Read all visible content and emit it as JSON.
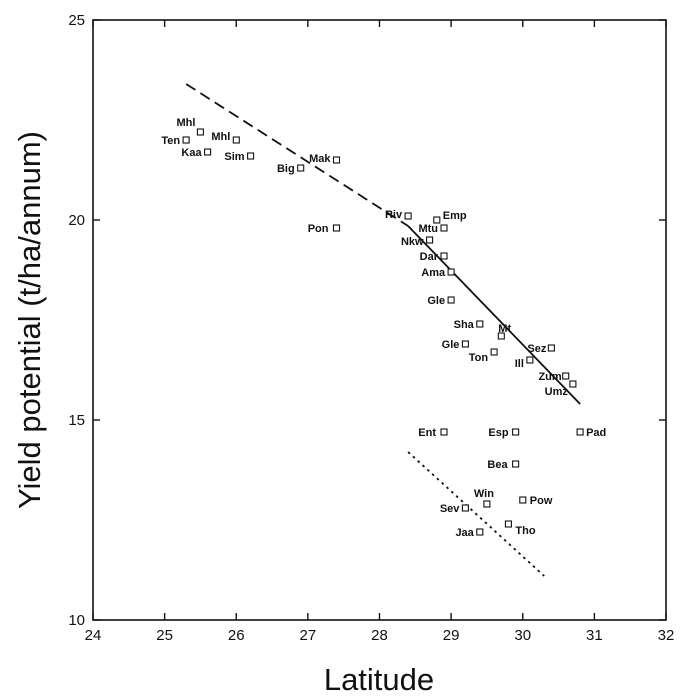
{
  "chart_data": {
    "type": "scatter",
    "xlabel": "Latitude",
    "ylabel": "Yield potential (t/ha/annum)",
    "xlim": [
      24,
      32
    ],
    "ylim": [
      10,
      25
    ],
    "xticks": [
      "24",
      "25",
      "26",
      "27",
      "28",
      "29",
      "30",
      "31",
      "32"
    ],
    "yticks": [
      "10",
      "15",
      "20",
      "25"
    ],
    "grid": false,
    "series": [
      {
        "marker": "open-square",
        "points": [
          {
            "label": "Mhl",
            "x": 25.5,
            "y": 22.2
          },
          {
            "label": "Ten",
            "x": 25.3,
            "y": 22.0
          },
          {
            "label": "Mhl",
            "x": 26.0,
            "y": 22.0
          },
          {
            "label": "Kaa",
            "x": 25.6,
            "y": 21.7
          },
          {
            "label": "Sim",
            "x": 26.2,
            "y": 21.6
          },
          {
            "label": "Mak",
            "x": 27.4,
            "y": 21.5
          },
          {
            "label": "Big",
            "x": 26.9,
            "y": 21.3
          },
          {
            "label": "Pon",
            "x": 27.4,
            "y": 19.8
          },
          {
            "label": "Riv",
            "x": 28.4,
            "y": 20.1
          },
          {
            "label": "Emp",
            "x": 28.8,
            "y": 20.0
          },
          {
            "label": "Mtu",
            "x": 28.9,
            "y": 19.8
          },
          {
            "label": "Nkw",
            "x": 28.7,
            "y": 19.5
          },
          {
            "label": "Dar",
            "x": 28.9,
            "y": 19.1
          },
          {
            "label": "Ama",
            "x": 29.0,
            "y": 18.7
          },
          {
            "label": "Gle",
            "x": 29.0,
            "y": 18.0
          },
          {
            "label": "Sha",
            "x": 29.4,
            "y": 17.4
          },
          {
            "label": "Mt",
            "x": 29.7,
            "y": 17.1
          },
          {
            "label": "Gle",
            "x": 29.2,
            "y": 16.9
          },
          {
            "label": "Ton",
            "x": 29.6,
            "y": 16.7
          },
          {
            "label": "Sez",
            "x": 30.4,
            "y": 16.8
          },
          {
            "label": "Ill",
            "x": 30.1,
            "y": 16.5
          },
          {
            "label": "Zum",
            "x": 30.6,
            "y": 16.1
          },
          {
            "label": "Umz",
            "x": 30.7,
            "y": 15.9
          },
          {
            "label": "Ent",
            "x": 28.9,
            "y": 14.7
          },
          {
            "label": "Esp",
            "x": 29.9,
            "y": 14.7
          },
          {
            "label": "Pad",
            "x": 30.8,
            "y": 14.7
          },
          {
            "label": "Bea",
            "x": 29.9,
            "y": 13.9
          },
          {
            "label": "Win",
            "x": 29.5,
            "y": 12.9
          },
          {
            "label": "Pow",
            "x": 30.0,
            "y": 13.0
          },
          {
            "label": "Sev",
            "x": 29.2,
            "y": 12.8
          },
          {
            "label": "Tho",
            "x": 29.8,
            "y": 12.4
          },
          {
            "label": "Jaa",
            "x": 29.4,
            "y": 12.2
          }
        ]
      }
    ],
    "lines": [
      {
        "style": "dashed",
        "x": [
          25.3,
          28.4
        ],
        "y": [
          23.4,
          19.85
        ]
      },
      {
        "style": "solid",
        "x": [
          28.4,
          30.8
        ],
        "y": [
          19.85,
          15.4
        ]
      },
      {
        "style": "dotted",
        "x": [
          28.4,
          30.3
        ],
        "y": [
          14.2,
          11.1
        ]
      }
    ]
  }
}
